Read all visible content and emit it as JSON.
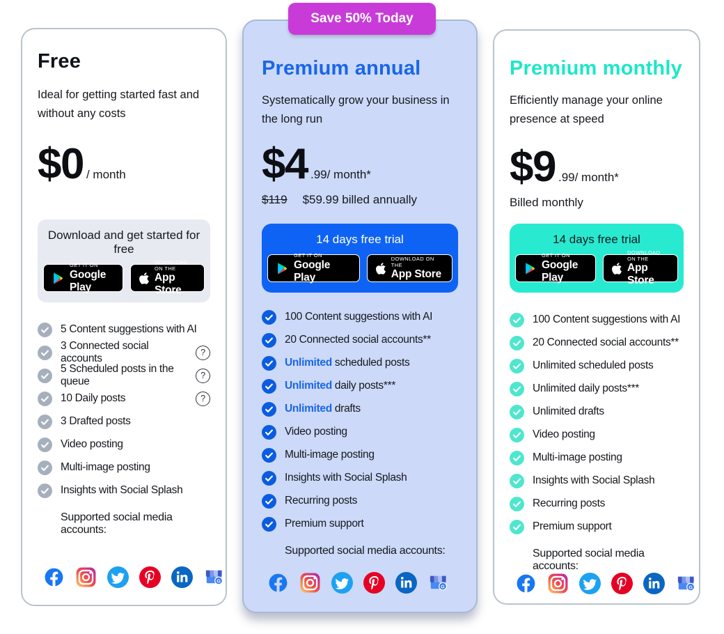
{
  "promo_badge": {
    "label": "Save 50% Today",
    "color": "#c93bd9"
  },
  "icons": {
    "help_glyph": "?"
  },
  "store_badges": {
    "google_play": {
      "tagline": "GET IT ON",
      "name": "Google Play"
    },
    "app_store": {
      "tagline": "Download on the",
      "name": "App Store"
    }
  },
  "social_icons": [
    "facebook",
    "instagram",
    "twitter",
    "pinterest",
    "linkedin",
    "google-business"
  ],
  "colors": {
    "annual_accent": "#1a66e8",
    "monthly_accent": "#1de7c8",
    "annual_card_bg": "#ccd9f8",
    "trial_button_blue": "#0e63f4",
    "trial_button_teal": "#27ead1",
    "free_check": "#a6b0bd"
  },
  "plans": [
    {
      "id": "free",
      "title": "Free",
      "description": "Ideal for getting started fast and without any costs",
      "price": {
        "amount": "$0",
        "suffix": "/ month"
      },
      "cta_label": "Download and get started for free",
      "features": [
        {
          "text": "5 Content suggestions with AI",
          "help": false
        },
        {
          "text": "3 Connected social accounts",
          "help": true
        },
        {
          "text": "5 Scheduled posts in the queue",
          "help": true
        },
        {
          "text": "10 Daily posts",
          "help": true
        },
        {
          "text": "3 Drafted posts",
          "help": false
        },
        {
          "text": "Video posting",
          "help": false
        },
        {
          "text": "Multi-image posting",
          "help": false
        },
        {
          "text": "Insights with Social Splash",
          "help": false
        }
      ],
      "supported_label": "Supported social media accounts:"
    },
    {
      "id": "premium-annual",
      "title": "Premium annual",
      "description": "Systematically grow your business in the long run",
      "price": {
        "amount": "$4",
        "suffix": ".99/ month*"
      },
      "old_price": "$119",
      "billing_note": "$59.99 billed annually",
      "cta_label": "14 days free trial",
      "features": [
        {
          "text": "100 Content suggestions with AI"
        },
        {
          "text": "20 Connected social accounts**"
        },
        {
          "bold": "Unlimited",
          "text": "scheduled posts"
        },
        {
          "bold": "Unlimited",
          "text": "daily posts***"
        },
        {
          "bold": "Unlimited",
          "text": "drafts"
        },
        {
          "text": "Video posting"
        },
        {
          "text": "Multi-image posting"
        },
        {
          "text": "Insights with Social Splash"
        },
        {
          "text": "Recurring posts"
        },
        {
          "text": "Premium support"
        }
      ],
      "supported_label": "Supported social media accounts:"
    },
    {
      "id": "premium-monthly",
      "title": "Premium monthly",
      "description": "Efficiently manage your online presence at speed",
      "price": {
        "amount": "$9",
        "suffix": ".99/ month*"
      },
      "billing_note": "Billed monthly",
      "cta_label": "14 days free trial",
      "features": [
        {
          "text": "100 Content suggestions with AI"
        },
        {
          "text": "20 Connected social accounts**"
        },
        {
          "text": "Unlimited scheduled posts"
        },
        {
          "text": "Unlimited daily posts***"
        },
        {
          "text": "Unlimited drafts"
        },
        {
          "text": "Video posting"
        },
        {
          "text": "Multi-image posting"
        },
        {
          "text": "Insights with Social Splash"
        },
        {
          "text": "Recurring posts"
        },
        {
          "text": "Premium support"
        }
      ],
      "supported_label": "Supported social media accounts:"
    }
  ]
}
